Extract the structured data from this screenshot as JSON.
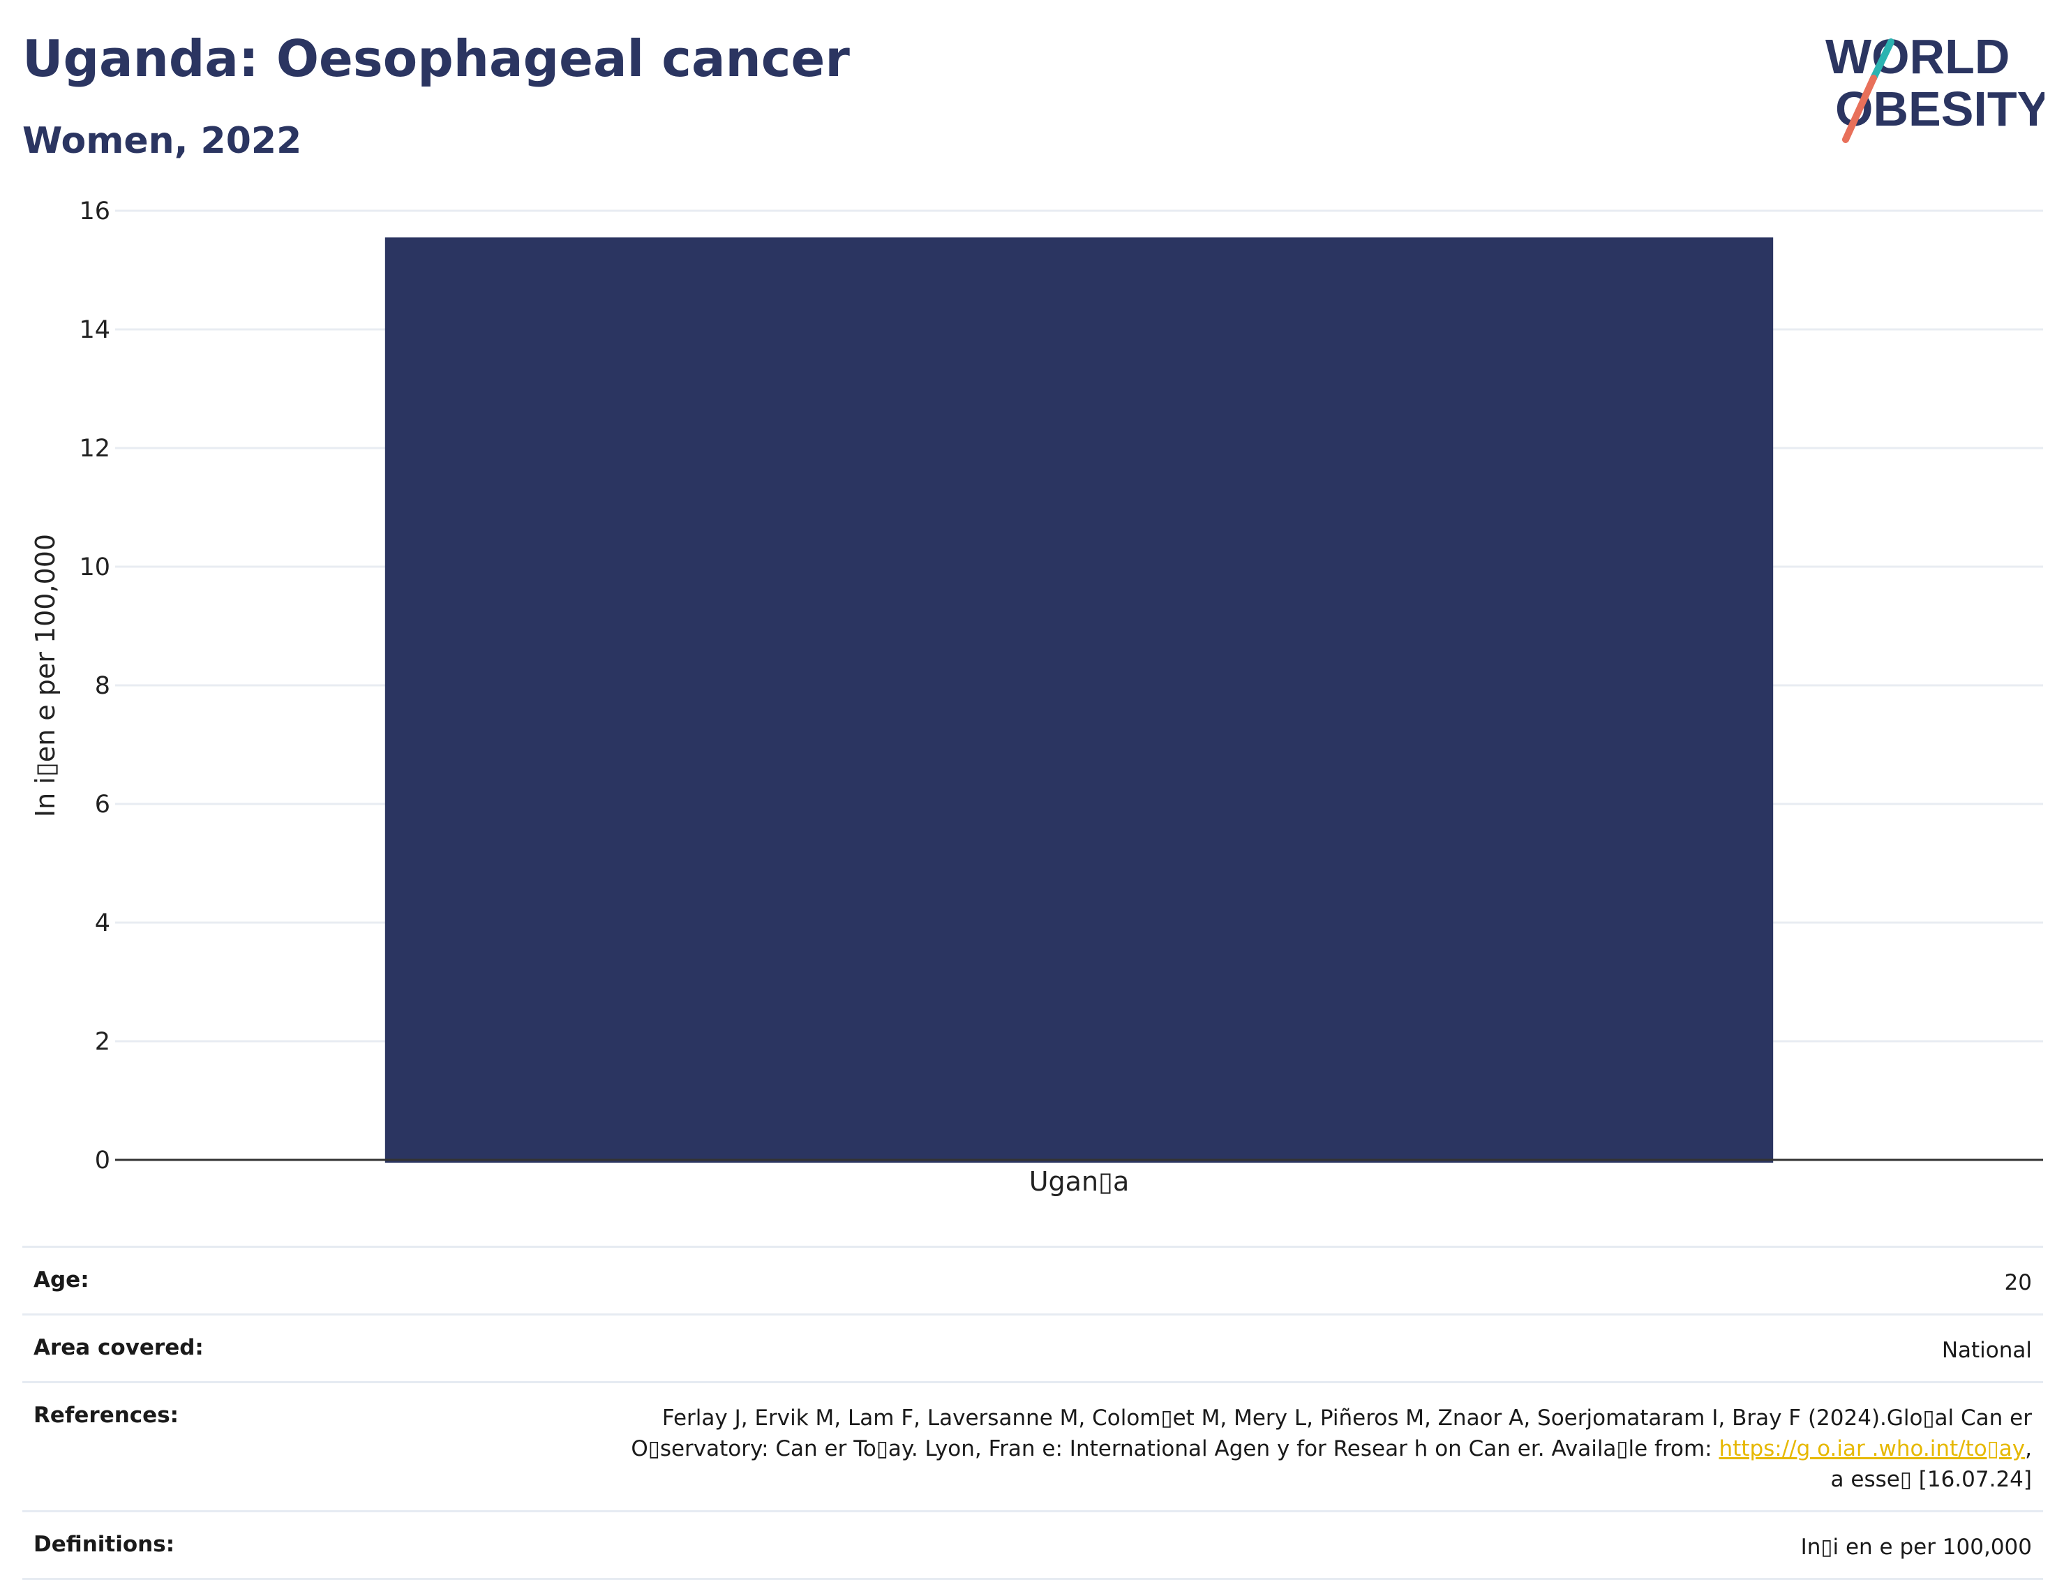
{
  "header": {
    "title": "Uganda: Oesophageal cancer",
    "subtitle": "Women, 2022",
    "logo_line1": "WORLD",
    "logo_line2": "OBESITY"
  },
  "colors": {
    "bar": "#2b3561",
    "title": "#2b3561",
    "grid": "#e8ecf2",
    "link": "#e6b800",
    "logo_teal": "#2bb3b1",
    "logo_coral": "#e8705a"
  },
  "chart_data": {
    "type": "bar",
    "categories": [
      "Ugan▯a"
    ],
    "values": [
      15.55
    ],
    "title": "Uganda: Oesophageal cancer",
    "subtitle": "Women, 2022",
    "xlabel": "",
    "ylabel": "In i▯en e per 100,000",
    "ylim": [
      0,
      16
    ],
    "yticks": [
      0,
      2,
      4,
      6,
      8,
      10,
      12,
      14,
      16
    ],
    "grid": true,
    "legend": "none"
  },
  "info": {
    "age_label": "Age:",
    "age_value": "20",
    "area_label": "Area covered:",
    "area_value": "National",
    "references_label": "References:",
    "references_line1": "Ferlay J, Ervik M, Lam F, Laversanne M, Colom▯et M, Mery L, Piñeros M, Znaor A, Soerjomataram I, Bray F (2024).Glo▯al Can  er",
    "references_line2_pre": "O▯servatory: Can  er To▯ay. Lyon, Fran  e: International Agen  y for Resear  h on Can  er. Availa▯le from: ",
    "references_link": "https://g  o.iar  .who.int/to▯ay",
    "references_line2_post": ",",
    "references_line3": "a   esse▯ [16.07.24]",
    "definitions_label": "Definitions:",
    "definitions_value": "In▯i  en  e per 100,000"
  }
}
